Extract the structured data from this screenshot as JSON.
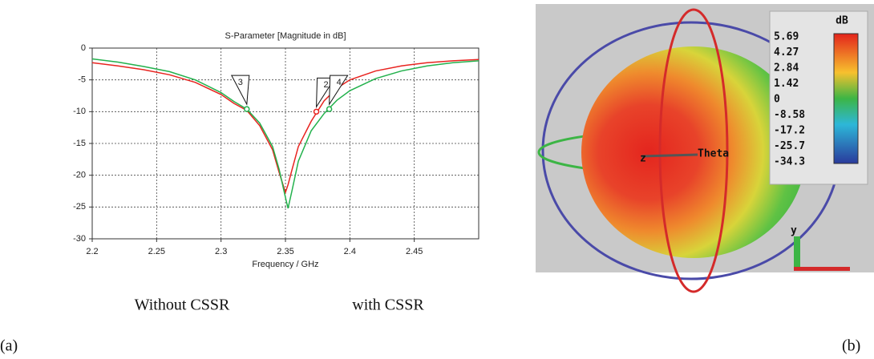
{
  "chart_data": {
    "type": "line",
    "title": "S-Parameter [Magnitude in dB]",
    "x_label": "Frequency / GHz",
    "x": [
      2.2,
      2.22,
      2.24,
      2.26,
      2.28,
      2.3,
      2.31,
      2.32,
      2.33,
      2.34,
      2.345,
      2.35,
      2.352,
      2.355,
      2.36,
      2.37,
      2.38,
      2.39,
      2.4,
      2.42,
      2.44,
      2.46,
      2.48,
      2.5
    ],
    "series": [
      {
        "name": "Without CSSR",
        "color": "#e8231f",
        "values": [
          -2.3,
          -2.8,
          -3.4,
          -4.2,
          -5.4,
          -7.3,
          -8.7,
          -9.8,
          -12.2,
          -16,
          -19.5,
          -22.7,
          -21.5,
          -19.2,
          -15.5,
          -11.5,
          -8.3,
          -6.3,
          -5.0,
          -3.6,
          -2.8,
          -2.3,
          -2.0,
          -1.8
        ]
      },
      {
        "name": "with CSSR",
        "color": "#22b14c",
        "values": [
          -1.7,
          -2.2,
          -2.9,
          -3.7,
          -5.0,
          -7.0,
          -8.4,
          -9.6,
          -11.8,
          -15.5,
          -19.0,
          -23.5,
          -25.2,
          -22.5,
          -17.8,
          -13.0,
          -10.3,
          -8.2,
          -6.7,
          -4.8,
          -3.6,
          -2.8,
          -2.3,
          -2.0
        ]
      }
    ],
    "markers": [
      {
        "label": "3",
        "x": 2.32,
        "y": -9.6,
        "color": "#22b14c"
      },
      {
        "label": "2",
        "x": 2.374,
        "y": -10,
        "color": "#e8231f"
      },
      {
        "label": "4",
        "x": 2.384,
        "y": -9.6,
        "color": "#22b14c"
      }
    ],
    "xlim": [
      2.2,
      2.5
    ],
    "xticks": [
      2.2,
      2.25,
      2.3,
      2.35,
      2.4,
      2.45
    ],
    "ylim": [
      -30,
      0
    ],
    "yticks": [
      0,
      -5,
      -10,
      -15,
      -20,
      -25,
      -30
    ],
    "grid": true
  },
  "captions": {
    "a": "(a)",
    "b": "(b)"
  },
  "pattern": {
    "colorbar_title": "dB",
    "colorbar_labels": [
      "5.69",
      "4.27",
      "2.84",
      "1.42",
      "0",
      "-8.58",
      "-17.2",
      "-25.7",
      "-34.3"
    ],
    "axis_theta": "Theta",
    "axis_z": "z",
    "axis_y": "y"
  }
}
